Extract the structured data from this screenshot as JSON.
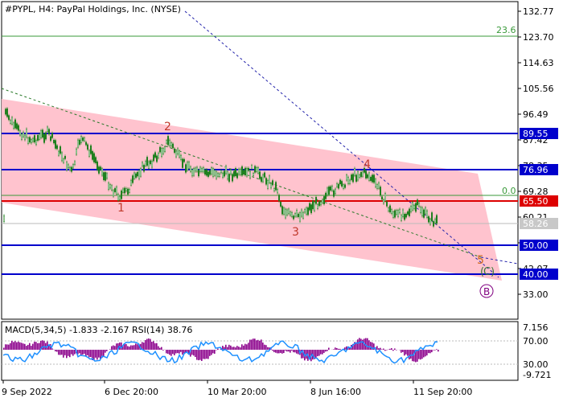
{
  "header": {
    "title": "#PYPL, H4:  PayPal Holdings, Inc. (NYSE)"
  },
  "colors": {
    "channel_fill": "#ffc0cb",
    "level_blue": "#0000cc",
    "level_red": "#dd0000",
    "fib_green": "#3a9a3a",
    "wave_label": "#c0392b",
    "circle_label": "#800080",
    "macd_hist": "#8b008b",
    "macd_signal": "#1e90ff",
    "trend_dash": "#2222aa"
  },
  "price_axis": {
    "ticks": [
      "132.77",
      "123.70",
      "114.63",
      "105.56",
      "96.49",
      "87.42",
      "78.35",
      "69.28",
      "60.21",
      "51.14",
      "42.07",
      "33.00"
    ]
  },
  "time_axis": {
    "ticks": [
      "9 Sep 2022",
      "6 Dec 20:00",
      "10 Mar 20:00",
      "8 Jun 16:00",
      "11 Sep 20:00"
    ]
  },
  "levels": {
    "blue": [
      "89.55",
      "76.96",
      "50.00",
      "40.00"
    ],
    "red": "65.50",
    "current": "58.26"
  },
  "fib": {
    "top": "23.6",
    "bottom": "0.0"
  },
  "waves": {
    "w1": "1",
    "w2": "2",
    "w3": "3",
    "w4": "4",
    "w5": "5",
    "c": "C",
    "b": "B"
  },
  "macd": {
    "header": "MACD(5,34,5) -1.833 -2.167 RSI(14) 38.76",
    "axis_ticks": [
      "7.156",
      "70.00",
      "30.00",
      "-9.721"
    ]
  }
}
